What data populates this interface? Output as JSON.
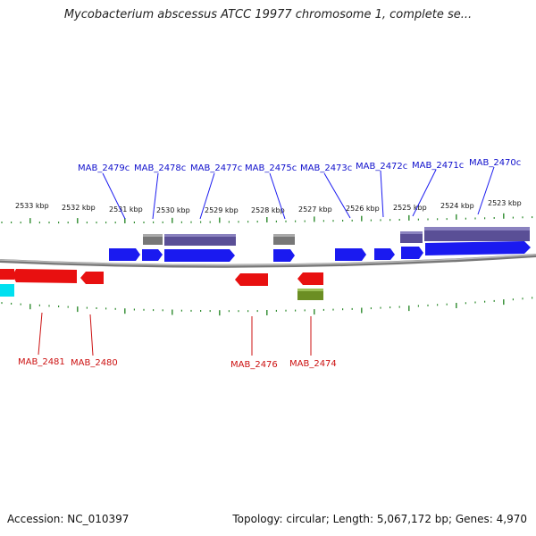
{
  "title": "Mycobacterium abscessus ATCC 19977 chromosome 1, complete se...",
  "footer": {
    "accession": "Accession: NC_010397",
    "summary": "Topology: circular; Length: 5,067,172 bp; Genes: 4,970"
  },
  "colors": {
    "forward_gene": "#1a1af0",
    "reverse_gene": "#e81010",
    "forward_cds_upper": "#5a4f96",
    "pseudo": "#777777",
    "olive": "#6b8e23",
    "cyan": "#00e0f0",
    "backbone": "#999999",
    "ticks": "#2e8b2e"
  },
  "kbp_labels": [
    "2533 kbp",
    "2532 kbp",
    "2531 kbp",
    "2530 kbp",
    "2529 kbp",
    "2528 kbp",
    "2527 kbp",
    "2526 kbp",
    "2525 kbp",
    "2524 kbp",
    "2523 kbp"
  ],
  "top_genes": [
    "MAB_2479c",
    "MAB_2478c",
    "MAB_2477c",
    "MAB_2475c",
    "MAB_2473c",
    "MAB_2472c",
    "MAB_2471c",
    "MAB_2470c"
  ],
  "bottom_genes": [
    "MAB_2481",
    "MAB_2480",
    "MAB_2476",
    "MAB_2474"
  ]
}
